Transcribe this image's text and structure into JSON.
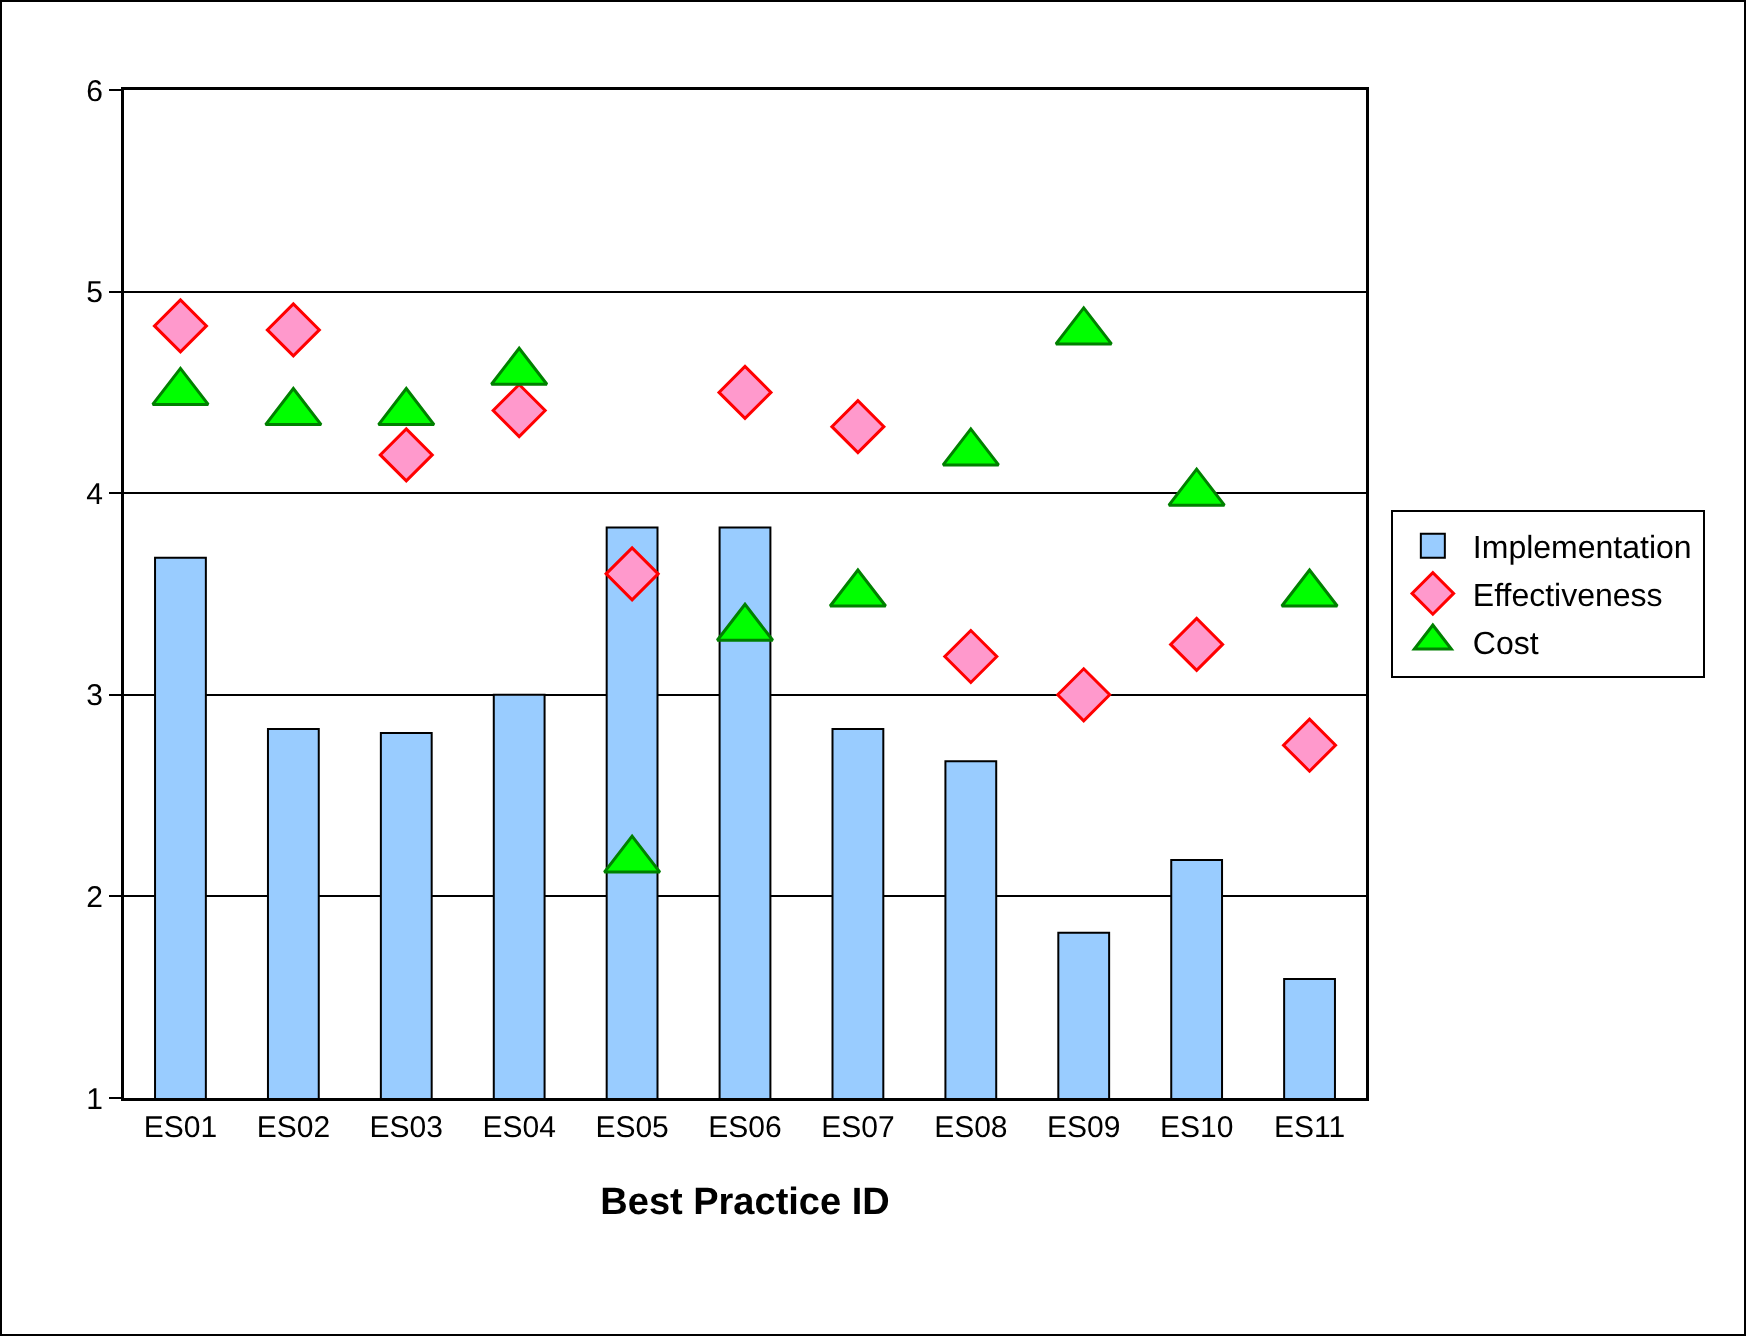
{
  "chart_data": {
    "type": "bar",
    "xlabel": "Best Practice ID",
    "categories": [
      "ES01",
      "ES02",
      "ES03",
      "ES04",
      "ES05",
      "ES06",
      "ES07",
      "ES08",
      "ES09",
      "ES10",
      "ES11"
    ],
    "series": [
      {
        "name": "Implementation",
        "color": "#99ccff",
        "values": [
          3.68,
          2.83,
          2.81,
          3.0,
          3.83,
          3.83,
          2.83,
          2.67,
          1.82,
          2.18,
          1.59
        ]
      },
      {
        "name": "Effectiveness",
        "type": "scatter",
        "marker": "diamond",
        "color": "#ff99cc",
        "values": [
          4.83,
          4.81,
          4.19,
          4.41,
          3.6,
          4.5,
          4.33,
          3.19,
          3.0,
          3.25,
          2.75
        ]
      },
      {
        "name": "Cost",
        "type": "scatter",
        "marker": "triangle",
        "color": "#00ff00",
        "values": [
          4.5,
          4.4,
          4.4,
          4.6,
          2.18,
          3.33,
          3.5,
          4.2,
          4.8,
          4.0,
          3.5
        ]
      }
    ],
    "ylim": [
      1,
      6
    ],
    "yticks": [
      1,
      2,
      3,
      4,
      5,
      6
    ],
    "grid": "y",
    "legend": "right"
  }
}
